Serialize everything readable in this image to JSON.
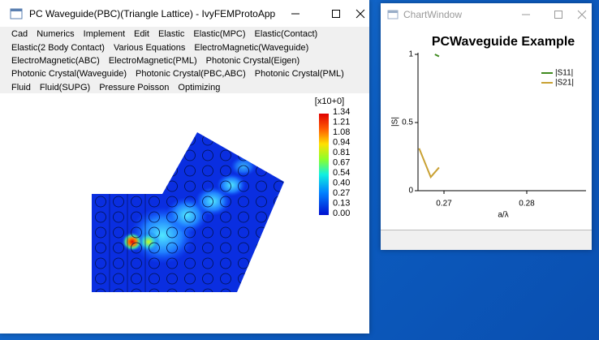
{
  "main_window": {
    "title": "PC Waveguide(PBC)(Triangle Lattice) - IvyFEMProtoApp",
    "menu": [
      [
        "Cad",
        "Numerics",
        "Implement",
        "Edit",
        "Elastic",
        "Elastic(MPC)",
        "Elastic(Contact)"
      ],
      [
        "Elastic(2 Body Contact)",
        "Various Equations",
        "ElectroMagnetic(Waveguide)"
      ],
      [
        "ElectroMagnetic(ABC)",
        "ElectroMagnetic(PML)",
        "Photonic Crystal(Eigen)"
      ],
      [
        "Photonic Crystal(Waveguide)",
        "Photonic Crystal(PBC,ABC)",
        "Photonic Crystal(PML)"
      ],
      [
        "Fluid",
        "Fluid(SUPG)",
        "Pressure Poisson",
        "Optimizing"
      ]
    ],
    "colorbar": {
      "title": "[x10+0]",
      "labels": [
        "1.34",
        "1.21",
        "1.08",
        "0.94",
        "0.81",
        "0.67",
        "0.54",
        "0.40",
        "0.27",
        "0.13",
        "0.00"
      ]
    }
  },
  "chart_window": {
    "title": "ChartWindow"
  },
  "chart_data": {
    "type": "line",
    "title": "PCWaveguide Example",
    "x_label": "a/λ",
    "y_label": "|S|",
    "xlim": [
      0.26686,
      0.28716
    ],
    "xticks": [
      0.27,
      0.28
    ],
    "ylim": [
      0,
      1
    ],
    "yticks": [
      0,
      0.5,
      1
    ],
    "legend": "top-right",
    "series": [
      {
        "name": "|S11|",
        "color": "#3f8a1e",
        "x": [
          0.2689,
          0.2694
        ],
        "values": [
          1.0,
          0.985
        ]
      },
      {
        "name": "|S21|",
        "color": "#c9a133",
        "x": [
          0.267,
          0.2684,
          0.2694
        ],
        "values": [
          0.31,
          0.1,
          0.17
        ]
      }
    ]
  }
}
